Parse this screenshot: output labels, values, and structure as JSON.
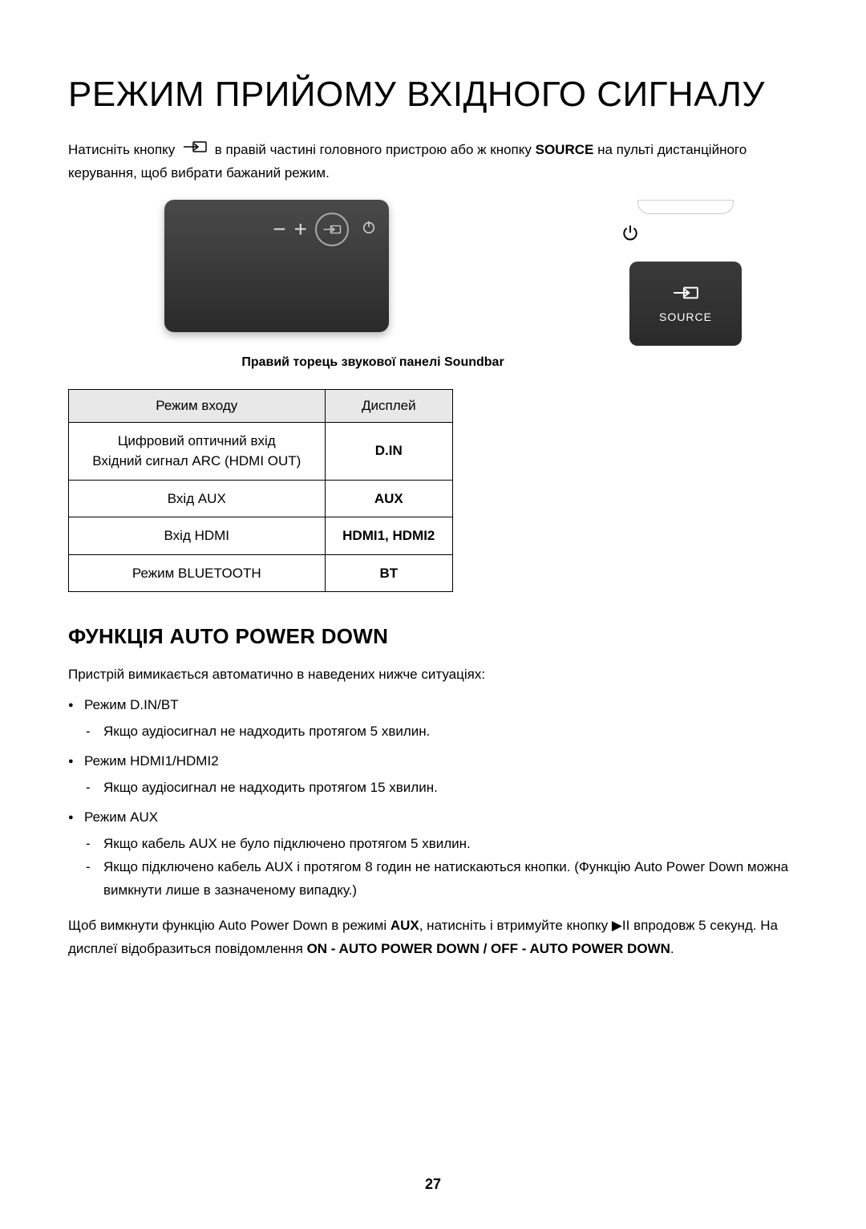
{
  "title": "РЕЖИМ ПРИЙОМУ ВХІДНОГО СИГНАЛУ",
  "intro": {
    "prefix": "Натисніть кнопку ",
    "middle": " в правій частині головного пристрою або ж кнопку ",
    "source_word": "SOURCE",
    "suffix": " на пульті дистанційного керування, щоб вибрати бажаний режим."
  },
  "remote_source_label": "SOURCE",
  "device_caption": "Правий торець звукової панелі Soundbar",
  "table": {
    "header_mode": "Режим входу",
    "header_display": "Дисплей",
    "rows": [
      {
        "mode": "Цифровий оптичний вхід\nВхідний сигнал ARC (HDMI OUT)",
        "display": "D.IN"
      },
      {
        "mode": "Вхід AUX",
        "display": "AUX"
      },
      {
        "mode": "Вхід HDMI",
        "display": "HDMI1, HDMI2"
      },
      {
        "mode": "Режим BLUETOOTH",
        "display": "BT"
      }
    ]
  },
  "section_heading": "ФУНКЦІЯ AUTO POWER DOWN",
  "section_intro": "Пристрій вимикається автоматично в наведених нижче ситуаціях:",
  "bullets": [
    {
      "title": "Режим D.IN/BT",
      "subs": [
        "Якщо аудіосигнал не надходить протягом 5 хвилин."
      ]
    },
    {
      "title": "Режим HDMI1/HDMI2",
      "subs": [
        "Якщо аудіосигнал не надходить протягом 15 хвилин."
      ]
    },
    {
      "title": "Режим AUX",
      "subs": [
        "Якщо кабель AUX не було підключено протягом 5 хвилин.",
        "Якщо підключено кабель AUX і протягом 8 годин не натискаються кнопки. (Функцію Auto Power Down можна вимкнути лише в зазначеному випадку.)"
      ]
    }
  ],
  "closing": {
    "part1": "Щоб вимкнути функцію Auto Power Down в режимі ",
    "aux": "AUX",
    "part2": ", натисніть і втримуйте кнопку ",
    "play_pause": "▶II",
    "part3": " впродовж 5 секунд. На дисплеї відобразиться повідомлення ",
    "on_off": "ON - AUTO POWER DOWN / OFF - AUTO POWER DOWN",
    "part4": "."
  },
  "page_number": "27",
  "colors": {
    "device_bg_dark": "#2a2a2a",
    "device_bg_light": "#4a4a4a",
    "table_header_bg": "#e8e8e8",
    "text": "#000000",
    "background": "#ffffff"
  }
}
